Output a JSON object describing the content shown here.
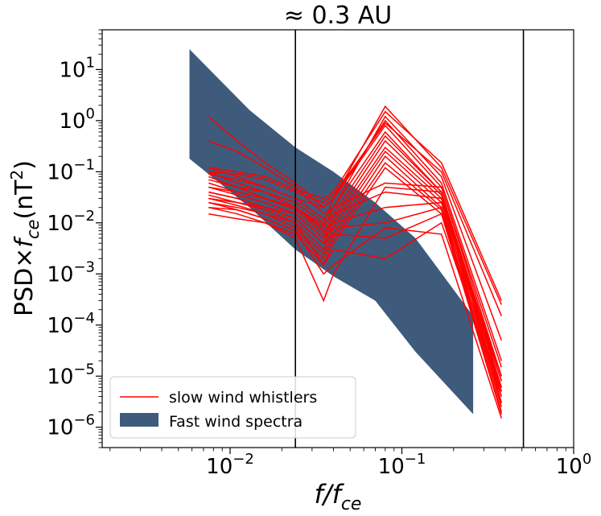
{
  "colors": {
    "band_fill": "#3e5b7c",
    "whistler_line": "#ff0000",
    "marker_line": "#000000",
    "axes": "#000000",
    "background": "#ffffff"
  },
  "chart_data": {
    "type": "line",
    "title": "≈  0.3 AU",
    "xlabel_base": "f/f",
    "xlabel_sub": "ce",
    "ylabel_pre": "PSD×",
    "ylabel_f": "f",
    "ylabel_sub": "ce",
    "ylabel_post": "(nT",
    "ylabel_sup": "2",
    "ylabel_close": ")",
    "xscale": "log",
    "yscale": "log",
    "xlim": [
      0.0018,
      1.0
    ],
    "ylim": [
      4e-07,
      60
    ],
    "x_ticks": [
      {
        "base": "10",
        "exp": "−2",
        "value": 0.01
      },
      {
        "base": "10",
        "exp": "−1",
        "value": 0.1
      },
      {
        "base": "10",
        "exp": "0",
        "value": 1
      }
    ],
    "y_ticks": [
      {
        "base": "10",
        "exp": "1",
        "value": 10
      },
      {
        "base": "10",
        "exp": "0",
        "value": 1
      },
      {
        "base": "10",
        "exp": "−1",
        "value": 0.1
      },
      {
        "base": "10",
        "exp": "−2",
        "value": 0.01
      },
      {
        "base": "10",
        "exp": "−3",
        "value": 0.001
      },
      {
        "base": "10",
        "exp": "−4",
        "value": 0.0001
      },
      {
        "base": "10",
        "exp": "−5",
        "value": 1e-05
      },
      {
        "base": "10",
        "exp": "−6",
        "value": 1e-06
      }
    ],
    "vertical_lines": [
      0.024,
      0.51
    ],
    "legend": {
      "position": "lower-left",
      "entries": [
        {
          "label": "slow wind whistlers",
          "kind": "line"
        },
        {
          "label": "Fast wind spectra",
          "kind": "patch"
        }
      ]
    },
    "fast_wind_band": {
      "x": [
        0.0058,
        0.013,
        0.024,
        0.04,
        0.07,
        0.12,
        0.26
      ],
      "upper": [
        25,
        1.6,
        0.3,
        0.1,
        0.025,
        0.005,
        0.00015
      ],
      "lower": [
        0.18,
        0.02,
        0.003,
        0.0009,
        0.0003,
        3e-05,
        1.8e-06
      ]
    },
    "whistler_x": [
      0.0075,
      0.011,
      0.016,
      0.024,
      0.035,
      0.04,
      0.08,
      0.17,
      0.38
    ],
    "whistler_series": [
      {
        "name": "w1",
        "values": [
          1.2,
          0.4,
          0.15,
          0.06,
          0.02,
          0.03,
          1.9,
          0.12,
          0.00025
        ]
      },
      {
        "name": "w2",
        "values": [
          0.4,
          0.25,
          0.12,
          0.05,
          0.015,
          0.02,
          1.2,
          0.08,
          5e-05
        ]
      },
      {
        "name": "w3",
        "values": [
          0.12,
          0.08,
          0.05,
          0.03,
          0.02,
          0.03,
          1.0,
          0.06,
          2e-05
        ]
      },
      {
        "name": "w4",
        "values": [
          0.1,
          0.06,
          0.04,
          0.025,
          0.01,
          0.03,
          0.8,
          0.05,
          1e-05
        ]
      },
      {
        "name": "w5",
        "values": [
          0.08,
          0.05,
          0.03,
          0.02,
          0.008,
          0.02,
          0.6,
          0.04,
          8e-06
        ]
      },
      {
        "name": "w6",
        "values": [
          0.06,
          0.04,
          0.03,
          0.018,
          0.006,
          0.015,
          0.5,
          0.04,
          6e-06
        ]
      },
      {
        "name": "w7",
        "values": [
          0.05,
          0.035,
          0.025,
          0.015,
          0.005,
          0.012,
          0.4,
          0.035,
          5e-06
        ]
      },
      {
        "name": "w8",
        "values": [
          0.04,
          0.03,
          0.02,
          0.012,
          0.004,
          0.01,
          0.3,
          0.03,
          4e-06
        ]
      },
      {
        "name": "w9",
        "values": [
          0.035,
          0.025,
          0.018,
          0.01,
          0.003,
          0.008,
          0.25,
          0.025,
          3e-06
        ]
      },
      {
        "name": "w10",
        "values": [
          0.03,
          0.022,
          0.015,
          0.008,
          0.0025,
          0.006,
          0.2,
          0.02,
          2.5e-06
        ]
      },
      {
        "name": "w11",
        "values": [
          0.025,
          0.018,
          0.012,
          0.007,
          0.002,
          0.005,
          0.15,
          0.018,
          2e-06
        ]
      },
      {
        "name": "w12",
        "values": [
          0.02,
          0.015,
          0.01,
          0.006,
          0.0015,
          0.004,
          0.12,
          0.015,
          1.8e-06
        ]
      },
      {
        "name": "w13",
        "values": [
          0.09,
          0.07,
          0.05,
          0.03,
          0.012,
          0.02,
          0.06,
          0.05,
          1.5e-05
        ]
      },
      {
        "name": "w14",
        "values": [
          0.07,
          0.05,
          0.04,
          0.02,
          0.009,
          0.015,
          0.04,
          0.03,
          1e-05
        ]
      },
      {
        "name": "w15",
        "values": [
          0.05,
          0.04,
          0.03,
          0.02,
          0.007,
          0.01,
          0.02,
          0.025,
          8e-06
        ]
      },
      {
        "name": "w16",
        "values": [
          0.04,
          0.03,
          0.02,
          0.015,
          0.005,
          0.008,
          0.01,
          0.02,
          6e-06
        ]
      },
      {
        "name": "w17",
        "values": [
          0.03,
          0.025,
          0.02,
          0.012,
          0.004,
          0.006,
          0.005,
          0.015,
          5e-06
        ]
      },
      {
        "name": "w18",
        "values": [
          0.025,
          0.02,
          0.015,
          0.01,
          0.0015,
          0.003,
          0.002,
          0.01,
          4e-06
        ]
      },
      {
        "name": "w19",
        "values": [
          0.1,
          0.09,
          0.07,
          0.04,
          0.025,
          0.035,
          0.9,
          0.1,
          0.00015
        ]
      },
      {
        "name": "w20",
        "values": [
          0.12,
          0.1,
          0.08,
          0.045,
          0.03,
          0.04,
          1.5,
          0.15,
          0.0003
        ]
      },
      {
        "name": "w21",
        "values": [
          0.015,
          0.012,
          0.01,
          0.005,
          0.0003,
          0.001,
          0.05,
          0.04,
          3e-06
        ]
      },
      {
        "name": "w22",
        "values": [
          0.02,
          0.018,
          0.012,
          0.007,
          0.001,
          0.0015,
          0.008,
          0.006,
          1.5e-06
        ]
      }
    ]
  }
}
